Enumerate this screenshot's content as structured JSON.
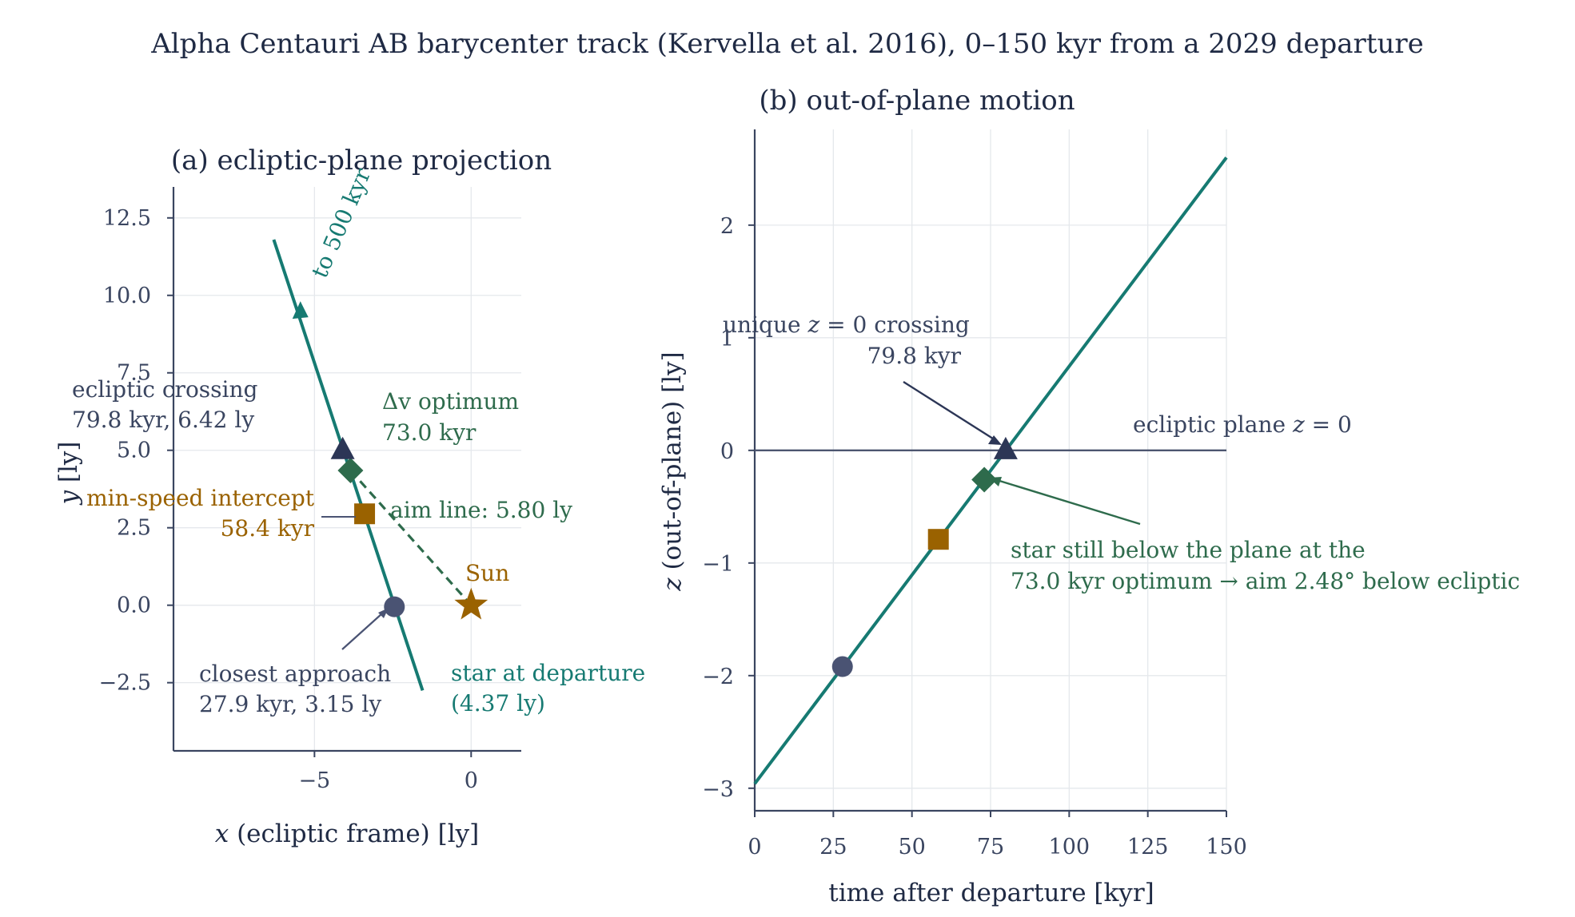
{
  "suptitle": "Alpha Centauri AB barycenter track (Kervella et al. 2016), 0–150 kyr from a 2029 departure",
  "colors": {
    "track": "#167a72",
    "aim": "#2e6b4c",
    "min_speed": "#9a6200",
    "closest": "#4a5373",
    "crossing": "#2c3656",
    "sun": "#9a6200",
    "plane": "#4d5670",
    "text": "#1f2a44"
  },
  "chart_data": [
    {
      "type": "line",
      "title": "(a) ecliptic-plane projection",
      "xlabel": "x (ecliptic frame) [ly]",
      "ylabel": "y [ly]",
      "xlim": [
        -9.5,
        1.6
      ],
      "ylim": [
        -4.7,
        13.5
      ],
      "xticks": [
        -5,
        0
      ],
      "xtick_labels": [
        "−5",
        "0"
      ],
      "yticks": [
        -2.5,
        0.0,
        2.5,
        5.0,
        7.5,
        10.0,
        12.5
      ],
      "ytick_labels": [
        "−2.5",
        "0.0",
        "2.5",
        "5.0",
        "7.5",
        "10.0",
        "12.5"
      ],
      "grid": true,
      "track": {
        "x": [
          -1.55,
          -6.3
        ],
        "y": [
          -2.75,
          11.8
        ]
      },
      "points": {
        "sun": {
          "x": 0.0,
          "y": 0.0,
          "label": "Sun"
        },
        "closest": {
          "x": -2.45,
          "y": -0.05
        },
        "min_speed": {
          "x": -3.4,
          "y": 2.95
        },
        "optimum": {
          "x": -3.85,
          "y": 4.35
        },
        "crossing": {
          "x": -4.1,
          "y": 5.0
        }
      },
      "direction_arrow": {
        "x": -5.45,
        "y": 9.5
      },
      "annotations": {
        "to_500": "to 500 kyr",
        "ecliptic_crossing": [
          "ecliptic crossing",
          "79.8 kyr, 6.42 ly"
        ],
        "dv_optimum": [
          "Δv optimum",
          "73.0 kyr"
        ],
        "min_speed": [
          "min-speed intercept",
          "58.4 kyr"
        ],
        "aim_line": "aim line: 5.80 ly",
        "closest": [
          "closest approach",
          "27.9 kyr, 3.15 ly"
        ],
        "star_departure": [
          "star at departure",
          "(4.37 ly)"
        ]
      }
    },
    {
      "type": "line",
      "title": "(b) out-of-plane motion",
      "xlabel": "time after departure [kyr]",
      "ylabel": "z (out-of-plane) [ly]",
      "xlim": [
        0,
        150
      ],
      "ylim": [
        -3.2,
        2.85
      ],
      "xticks": [
        0,
        25,
        50,
        75,
        100,
        125,
        150
      ],
      "xtick_labels": [
        "0",
        "25",
        "50",
        "75",
        "100",
        "125",
        "150"
      ],
      "yticks": [
        -3,
        -2,
        -1,
        0,
        1,
        2
      ],
      "ytick_labels": [
        "−3",
        "−2",
        "−1",
        "0",
        "1",
        "2"
      ],
      "grid": true,
      "series": [
        {
          "x": [
            0,
            150
          ],
          "y": [
            -2.96,
            2.6
          ]
        }
      ],
      "plane_z": 0,
      "points": {
        "closest": {
          "x": 27.9,
          "y": -1.92
        },
        "min_speed": {
          "x": 58.4,
          "y": -0.79
        },
        "optimum": {
          "x": 73.0,
          "y": -0.26
        },
        "crossing": {
          "x": 79.8,
          "y": 0.0
        }
      },
      "annotations": {
        "unique_crossing": [
          "unique z = 0 crossing",
          "79.8 kyr"
        ],
        "plane": "ecliptic plane z = 0",
        "below": [
          "star still below the plane at the",
          "73.0 kyr optimum  →  aim 2.48°  below ecliptic"
        ]
      }
    }
  ]
}
